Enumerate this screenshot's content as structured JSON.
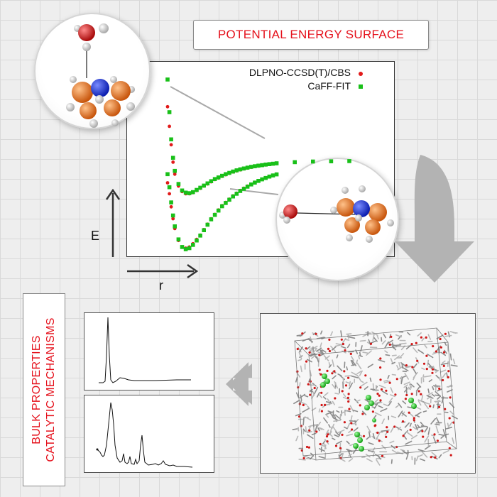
{
  "title": "POTENTIAL ENERGY SURFACE",
  "bulk_text": {
    "line1": "BULK PROPERTIES",
    "line2": "CATALYTIC MECHANISMS"
  },
  "colors": {
    "accent_red": "#e5101b",
    "series_red": "#e21a1a",
    "series_green": "#19c019",
    "nitrogen_blue": "#1a2fe0",
    "carbon_orange": "#e2701c",
    "oxygen_red": "#d41414"
  },
  "chart_data": {
    "type": "scatter",
    "xlabel": "r",
    "ylabel": "E",
    "grid": false,
    "legend_position": "top-right",
    "series": [
      {
        "name": "DLPNO-CCSD(T)/CBS",
        "color": "#e21a1a",
        "marker": "circle",
        "curves": [
          {
            "x": [
              2.0,
              2.05,
              2.1,
              2.15,
              2.2,
              2.3,
              2.4,
              2.5,
              2.6,
              2.7,
              2.8,
              2.9,
              3.0,
              3.1,
              3.2,
              3.3,
              3.4,
              3.5,
              3.6,
              3.7,
              3.8,
              3.9,
              4.0,
              4.1,
              4.2,
              4.3,
              4.4,
              4.5,
              4.6,
              4.7,
              4.8,
              4.9,
              5.0,
              5.5,
              6.0,
              6.5,
              7.0
            ],
            "y": [
              5.0,
              3.2,
              1.5,
              -0.1,
              -1.2,
              -2.3,
              -2.8,
              -3.0,
              -3.0,
              -2.9,
              -2.7,
              -2.5,
              -2.3,
              -2.1,
              -1.9,
              -1.7,
              -1.55,
              -1.4,
              -1.25,
              -1.12,
              -1.0,
              -0.9,
              -0.8,
              -0.72,
              -0.64,
              -0.57,
              -0.5,
              -0.45,
              -0.4,
              -0.35,
              -0.3,
              -0.26,
              -0.22,
              -0.12,
              -0.05,
              -0.03,
              -0.01
            ]
          },
          {
            "x": [
              2.0,
              2.05,
              2.1,
              2.15,
              2.2,
              2.3,
              2.4,
              2.5,
              2.6,
              2.7,
              2.8,
              2.9,
              3.0,
              3.1,
              3.2,
              3.3,
              3.4,
              3.5,
              3.6,
              3.7,
              3.8,
              3.9,
              4.0,
              4.1,
              4.2,
              4.3,
              4.4,
              4.5,
              4.6,
              4.7,
              4.8,
              4.9,
              5.0
            ],
            "y": [
              -2.0,
              -3.0,
              -4.2,
              -5.3,
              -6.2,
              -7.3,
              -7.9,
              -8.0,
              -7.9,
              -7.6,
              -7.2,
              -6.8,
              -6.3,
              -5.8,
              -5.3,
              -4.9,
              -4.5,
              -4.1,
              -3.8,
              -3.5,
              -3.2,
              -2.95,
              -2.7,
              -2.5,
              -2.3,
              -2.12,
              -1.95,
              -1.8,
              -1.66,
              -1.53,
              -1.4,
              -1.3,
              -1.2
            ]
          }
        ]
      },
      {
        "name": "CaFF-FIT",
        "color": "#19c019",
        "marker": "square",
        "curves": [
          {
            "x": [
              2.0,
              2.05,
              2.1,
              2.15,
              2.2,
              2.3,
              2.4,
              2.5,
              2.6,
              2.7,
              2.8,
              2.9,
              3.0,
              3.1,
              3.2,
              3.3,
              3.4,
              3.5,
              3.6,
              3.7,
              3.8,
              3.9,
              4.0,
              4.1,
              4.2,
              4.3,
              4.4,
              4.5,
              4.6,
              4.7,
              4.8,
              4.9,
              5.0,
              5.5,
              6.0,
              6.5,
              7.0
            ],
            "y": [
              7.5,
              4.5,
              2.0,
              0.3,
              -0.9,
              -2.1,
              -2.7,
              -2.9,
              -2.95,
              -2.85,
              -2.65,
              -2.45,
              -2.25,
              -2.05,
              -1.85,
              -1.65,
              -1.5,
              -1.35,
              -1.2,
              -1.08,
              -0.96,
              -0.85,
              -0.76,
              -0.68,
              -0.6,
              -0.53,
              -0.47,
              -0.42,
              -0.37,
              -0.32,
              -0.28,
              -0.24,
              -0.2,
              -0.1,
              -0.04,
              -0.02,
              0.0
            ]
          },
          {
            "x": [
              2.0,
              2.05,
              2.1,
              2.15,
              2.2,
              2.3,
              2.4,
              2.5,
              2.6,
              2.7,
              2.8,
              2.9,
              3.0,
              3.1,
              3.2,
              3.3,
              3.4,
              3.5,
              3.6,
              3.7,
              3.8,
              3.9,
              4.0,
              4.1,
              4.2,
              4.3,
              4.4,
              4.5,
              4.6,
              4.7,
              4.8,
              4.9,
              5.0
            ],
            "y": [
              -1.2,
              -2.4,
              -3.8,
              -5.0,
              -6.0,
              -7.2,
              -7.9,
              -8.1,
              -8.0,
              -7.7,
              -7.3,
              -6.85,
              -6.35,
              -5.85,
              -5.35,
              -4.95,
              -4.55,
              -4.15,
              -3.85,
              -3.55,
              -3.25,
              -3.0,
              -2.75,
              -2.55,
              -2.35,
              -2.15,
              -1.98,
              -1.82,
              -1.68,
              -1.55,
              -1.42,
              -1.32,
              -1.22
            ]
          }
        ]
      }
    ]
  }
}
